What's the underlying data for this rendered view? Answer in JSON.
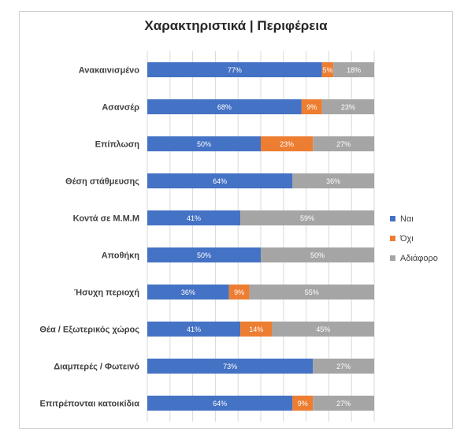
{
  "chart_data": {
    "type": "bar",
    "orientation": "horizontal",
    "stacked": true,
    "title": "Χαρακτηριστικά | Περιφέρεια",
    "categories": [
      "Ανακαινισμένο",
      "Ασανσέρ",
      "Επίπλωση",
      "Θέση στάθμευσης",
      "Κοντά σε Μ.Μ.Μ",
      "Αποθήκη",
      "Ήσυχη περιοχή",
      "Θέα / Εξωτερικός χώρος",
      "Διαμπερές / Φωτεινό",
      "Επιτρέπονται κατοικίδια"
    ],
    "series": [
      {
        "name": "Ναι",
        "color": "#4472C4",
        "values": [
          77,
          68,
          50,
          64,
          41,
          50,
          36,
          41,
          73,
          64
        ]
      },
      {
        "name": "Όχι",
        "color": "#ED7D31",
        "values": [
          5,
          9,
          23,
          0,
          0,
          0,
          9,
          14,
          0,
          9
        ]
      },
      {
        "name": "Αδιάφορο",
        "color": "#A5A5A5",
        "values": [
          18,
          23,
          27,
          36,
          59,
          50,
          55,
          45,
          27,
          27
        ]
      }
    ],
    "data_labels": [
      [
        "77%",
        "5%",
        "18%"
      ],
      [
        "68%",
        "9%",
        "23%"
      ],
      [
        "50%",
        "23%",
        "27%"
      ],
      [
        "64%",
        "",
        "36%"
      ],
      [
        "41%",
        "",
        "59%"
      ],
      [
        "50%",
        "",
        "50%"
      ],
      [
        "36%",
        "9%",
        "55%"
      ],
      [
        "41%",
        "14%",
        "45%"
      ],
      [
        "73%",
        "",
        "27%"
      ],
      [
        "64%",
        "9%",
        "27%"
      ]
    ],
    "xlim": [
      0,
      100
    ],
    "grid": true,
    "legend_position": "right"
  }
}
